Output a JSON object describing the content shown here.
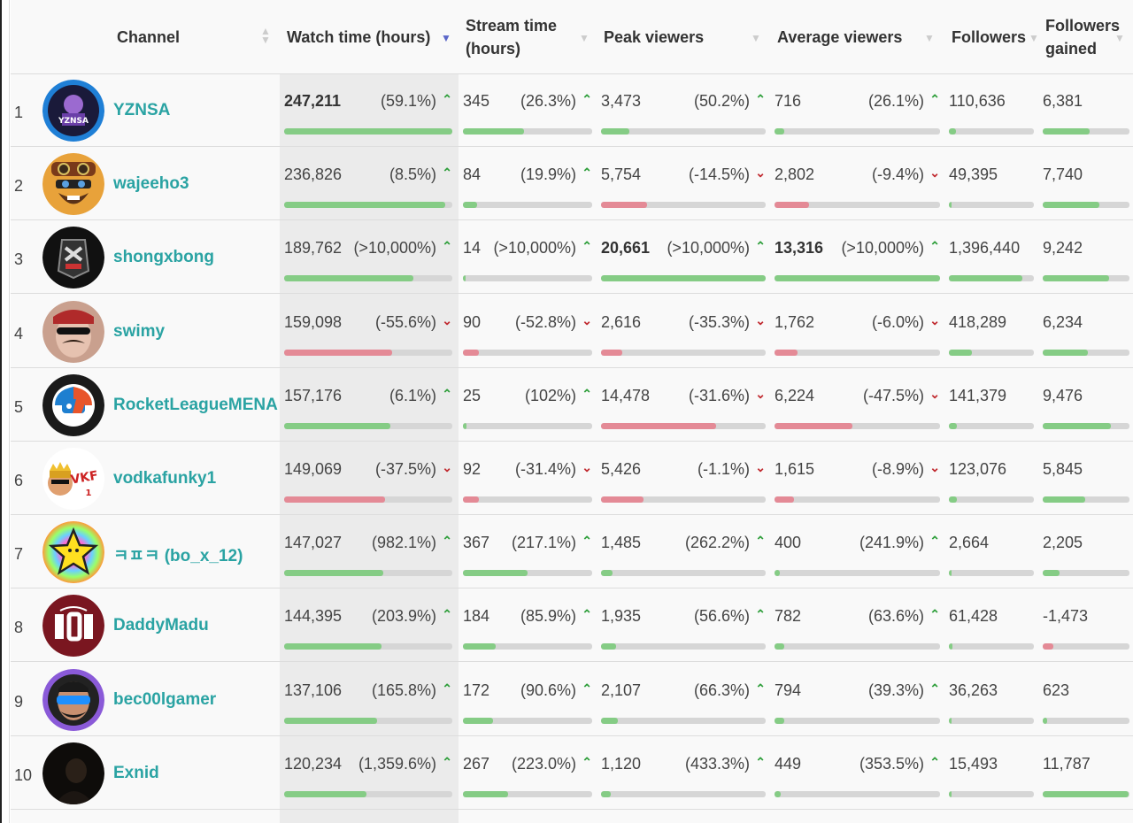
{
  "header": {
    "channel": "Channel",
    "watch_time": "Watch time (hours)",
    "stream_time_1": "Stream time",
    "stream_time_2": "(hours)",
    "peak_viewers": "Peak viewers",
    "average_viewers": "Average viewers",
    "followers": "Followers",
    "followers_gained_1": "Followers",
    "followers_gained_2": "gained"
  },
  "colors": {
    "up": "#2e9e3a",
    "down": "#c0282e",
    "bar_up": "#85cc85",
    "bar_down": "#e48a96",
    "link": "#2aa3a3"
  },
  "rows": [
    {
      "rank": "1",
      "channel": "YZNSA",
      "avatar": "yznsa-avatar",
      "watch": "247,211",
      "watch_pct": "(59.1%)",
      "watch_dir": "up",
      "watch_bar": 1.0,
      "watch_bold": true,
      "stream": "345",
      "stream_pct": "(26.3%)",
      "stream_dir": "up",
      "stream_bar": 0.47,
      "peak": "3,473",
      "peak_pct": "(50.2%)",
      "peak_dir": "up",
      "peak_bar": 0.17,
      "avg": "716",
      "avg_pct": "(26.1%)",
      "avg_dir": "up",
      "avg_bar": 0.06,
      "followers": "110,636",
      "followers_bar": 0.08,
      "gained": "6,381",
      "gained_bar": 0.54,
      "gained_dir": "up"
    },
    {
      "rank": "2",
      "channel": "wajeeho3",
      "avatar": "wajeeho3-avatar",
      "watch": "236,826",
      "watch_pct": "(8.5%)",
      "watch_dir": "up",
      "watch_bar": 0.96,
      "stream": "84",
      "stream_pct": "(19.9%)",
      "stream_dir": "up",
      "stream_bar": 0.11,
      "peak": "5,754",
      "peak_pct": "(-14.5%)",
      "peak_dir": "down",
      "peak_bar": 0.28,
      "avg": "2,802",
      "avg_pct": "(-9.4%)",
      "avg_dir": "down",
      "avg_bar": 0.21,
      "followers": "49,395",
      "followers_bar": 0.035,
      "gained": "7,740",
      "gained_bar": 0.65,
      "gained_dir": "up"
    },
    {
      "rank": "3",
      "channel": "shongxbong",
      "avatar": "shongxbong-avatar",
      "watch": "189,762",
      "watch_pct": "(>10,000%)",
      "watch_dir": "up",
      "watch_bar": 0.77,
      "stream": "14",
      "stream_pct": "(>10,000%)",
      "stream_dir": "up",
      "stream_bar": 0.02,
      "peak": "20,661",
      "peak_pct": "(>10,000%)",
      "peak_dir": "up",
      "peak_bar": 1.0,
      "peak_bold": true,
      "avg": "13,316",
      "avg_pct": "(>10,000%)",
      "avg_dir": "up",
      "avg_bar": 1.0,
      "avg_bold": true,
      "followers": "1,396,440",
      "followers_bar": 0.86,
      "gained": "9,242",
      "gained_bar": 0.77,
      "gained_dir": "up"
    },
    {
      "rank": "4",
      "channel": "swimy",
      "avatar": "swimy-avatar",
      "watch": "159,098",
      "watch_pct": "(-55.6%)",
      "watch_dir": "down",
      "watch_bar": 0.64,
      "stream": "90",
      "stream_pct": "(-52.8%)",
      "stream_dir": "down",
      "stream_bar": 0.12,
      "peak": "2,616",
      "peak_pct": "(-35.3%)",
      "peak_dir": "down",
      "peak_bar": 0.13,
      "avg": "1,762",
      "avg_pct": "(-6.0%)",
      "avg_dir": "down",
      "avg_bar": 0.14,
      "followers": "418,289",
      "followers_bar": 0.27,
      "gained": "6,234",
      "gained_bar": 0.52,
      "gained_dir": "up"
    },
    {
      "rank": "5",
      "channel": "RocketLeagueMENA",
      "avatar": "rocketleague-avatar",
      "watch": "157,176",
      "watch_pct": "(6.1%)",
      "watch_dir": "up",
      "watch_bar": 0.63,
      "stream": "25",
      "stream_pct": "(102%)",
      "stream_dir": "up",
      "stream_bar": 0.03,
      "peak": "14,478",
      "peak_pct": "(-31.6%)",
      "peak_dir": "down",
      "peak_bar": 0.7,
      "avg": "6,224",
      "avg_pct": "(-47.5%)",
      "avg_dir": "down",
      "avg_bar": 0.47,
      "followers": "141,379",
      "followers_bar": 0.09,
      "gained": "9,476",
      "gained_bar": 0.79,
      "gained_dir": "up"
    },
    {
      "rank": "6",
      "channel": "vodkafunky1",
      "avatar": "vodkafunky-avatar",
      "watch": "149,069",
      "watch_pct": "(-37.5%)",
      "watch_dir": "down",
      "watch_bar": 0.6,
      "stream": "92",
      "stream_pct": "(-31.4%)",
      "stream_dir": "down",
      "stream_bar": 0.12,
      "peak": "5,426",
      "peak_pct": "(-1.1%)",
      "peak_dir": "down",
      "peak_bar": 0.26,
      "avg": "1,615",
      "avg_pct": "(-8.9%)",
      "avg_dir": "down",
      "avg_bar": 0.12,
      "followers": "123,076",
      "followers_bar": 0.09,
      "gained": "5,845",
      "gained_bar": 0.49,
      "gained_dir": "up"
    },
    {
      "rank": "7",
      "channel": "ㅋㅍㅋ (bo_x_12)",
      "avatar": "star-avatar",
      "watch": "147,027",
      "watch_pct": "(982.1%)",
      "watch_dir": "up",
      "watch_bar": 0.59,
      "stream": "367",
      "stream_pct": "(217.1%)",
      "stream_dir": "up",
      "stream_bar": 0.5,
      "peak": "1,485",
      "peak_pct": "(262.2%)",
      "peak_dir": "up",
      "peak_bar": 0.07,
      "avg": "400",
      "avg_pct": "(241.9%)",
      "avg_dir": "up",
      "avg_bar": 0.03,
      "followers": "2,664",
      "followers_bar": 0.005,
      "gained": "2,205",
      "gained_bar": 0.19,
      "gained_dir": "up"
    },
    {
      "rank": "8",
      "channel": "DaddyMadu",
      "avatar": "daddymadu-avatar",
      "watch": "144,395",
      "watch_pct": "(203.9%)",
      "watch_dir": "up",
      "watch_bar": 0.58,
      "stream": "184",
      "stream_pct": "(85.9%)",
      "stream_dir": "up",
      "stream_bar": 0.25,
      "peak": "1,935",
      "peak_pct": "(56.6%)",
      "peak_dir": "up",
      "peak_bar": 0.09,
      "avg": "782",
      "avg_pct": "(63.6%)",
      "avg_dir": "up",
      "avg_bar": 0.06,
      "followers": "61,428",
      "followers_bar": 0.04,
      "gained": "-1,473",
      "gained_bar": 0.12,
      "gained_dir": "down"
    },
    {
      "rank": "9",
      "channel": "bec00lgamer",
      "avatar": "bec00lgamer-avatar",
      "watch": "137,106",
      "watch_pct": "(165.8%)",
      "watch_dir": "up",
      "watch_bar": 0.55,
      "stream": "172",
      "stream_pct": "(90.6%)",
      "stream_dir": "up",
      "stream_bar": 0.23,
      "peak": "2,107",
      "peak_pct": "(66.3%)",
      "peak_dir": "up",
      "peak_bar": 0.1,
      "avg": "794",
      "avg_pct": "(39.3%)",
      "avg_dir": "up",
      "avg_bar": 0.06,
      "followers": "36,263",
      "followers_bar": 0.025,
      "gained": "623",
      "gained_bar": 0.05,
      "gained_dir": "up"
    },
    {
      "rank": "10",
      "channel": "Exnid",
      "avatar": "exnid-avatar",
      "watch": "120,234",
      "watch_pct": "(1,359.6%)",
      "watch_dir": "up",
      "watch_bar": 0.49,
      "stream": "267",
      "stream_pct": "(223.0%)",
      "stream_dir": "up",
      "stream_bar": 0.35,
      "peak": "1,120",
      "peak_pct": "(433.3%)",
      "peak_dir": "up",
      "peak_bar": 0.06,
      "avg": "449",
      "avg_pct": "(353.5%)",
      "avg_dir": "up",
      "avg_bar": 0.04,
      "followers": "15,493",
      "followers_bar": 0.01,
      "gained": "11,787",
      "gained_bar": 0.99,
      "gained_dir": "up"
    }
  ]
}
